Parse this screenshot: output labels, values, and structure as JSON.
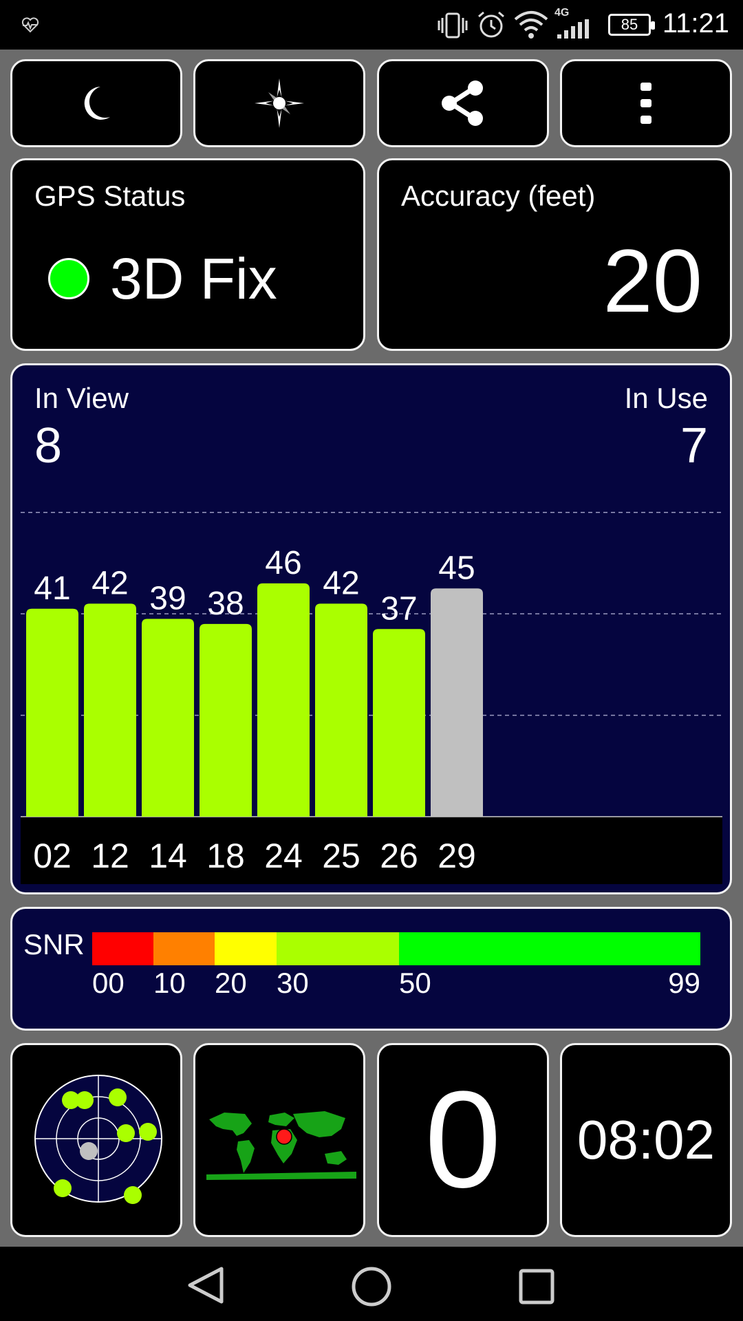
{
  "status_bar": {
    "time": "11:21",
    "battery": "85",
    "network": "4G",
    "icons": [
      "health-icon",
      "vibrate-icon",
      "alarm-icon",
      "wifi-icon",
      "signal-icon",
      "battery-icon"
    ]
  },
  "toolbar": {
    "buttons": [
      {
        "name": "night-mode-button",
        "icon": "moon-icon"
      },
      {
        "name": "compass-button",
        "icon": "compass-icon"
      },
      {
        "name": "share-button",
        "icon": "share-icon"
      },
      {
        "name": "more-button",
        "icon": "overflow-menu-icon"
      }
    ]
  },
  "gps_status": {
    "label": "GPS Status",
    "value": "3D Fix",
    "indicator_color": "#00ff00"
  },
  "accuracy": {
    "label": "Accuracy (feet)",
    "value": "20"
  },
  "satellites": {
    "in_view_label": "In View",
    "in_view": "8",
    "in_use_label": "In Use",
    "in_use": "7"
  },
  "chart_data": {
    "type": "bar",
    "categories": [
      "02",
      "12",
      "14",
      "18",
      "24",
      "25",
      "26",
      "29"
    ],
    "values": [
      41,
      42,
      39,
      38,
      46,
      42,
      37,
      45
    ],
    "in_use": [
      true,
      true,
      true,
      true,
      true,
      true,
      true,
      false
    ],
    "ylim": [
      0,
      70
    ],
    "gridlines": [
      20,
      40,
      60
    ],
    "colors": {
      "in_use": "#aaff00",
      "not_used": "#c0c0c0",
      "background": "#05053f"
    }
  },
  "snr": {
    "label": "SNR",
    "ticks": [
      "00",
      "10",
      "20",
      "30",
      "50",
      "99"
    ],
    "segments": [
      {
        "from": 0,
        "to": 10,
        "color": "#ff0000"
      },
      {
        "from": 10,
        "to": 20,
        "color": "#ff8000"
      },
      {
        "from": 20,
        "to": 30,
        "color": "#ffff00"
      },
      {
        "from": 30,
        "to": 50,
        "color": "#aaff00"
      },
      {
        "from": 50,
        "to": 99,
        "color": "#00ff00"
      }
    ]
  },
  "bottom": {
    "sky_plot_icon": "sky-plot-icon",
    "world_map_icon": "world-map-icon",
    "speed": "0",
    "time": "08:02"
  },
  "nav_bar": {
    "icons": [
      "back-icon",
      "home-icon",
      "recents-icon"
    ]
  }
}
